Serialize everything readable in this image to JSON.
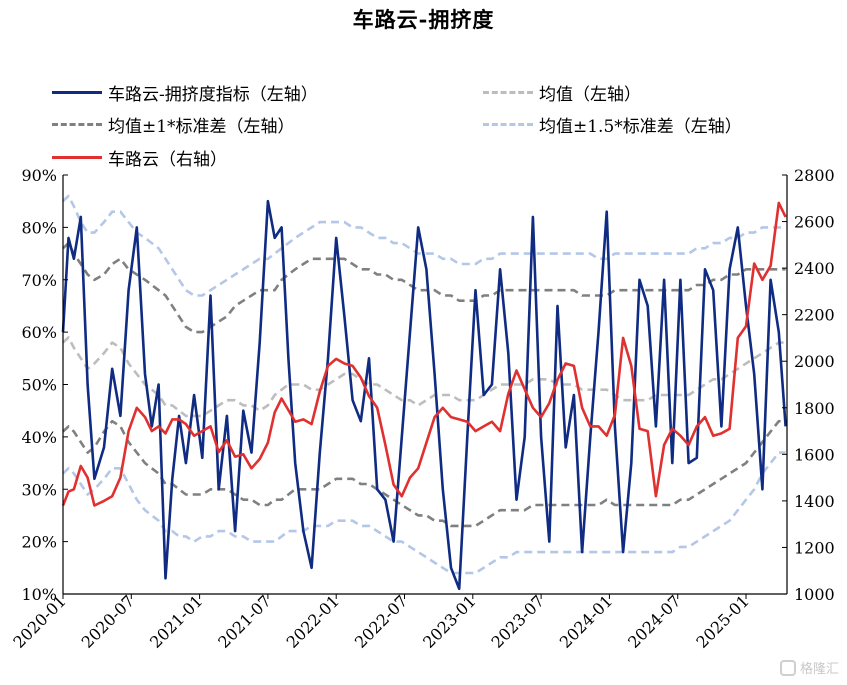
{
  "title": "车路云-拥挤度",
  "legend": [
    {
      "label": "车路云-拥挤度指标（左轴）",
      "color": "#0f2b82",
      "style": "solid"
    },
    {
      "label": "均值（左轴）",
      "color": "#bdbdbd",
      "style": "dashed"
    },
    {
      "label": "均值±1*标准差（左轴）",
      "color": "#808080",
      "style": "dashed"
    },
    {
      "label": "均值±1.5*标准差（左轴）",
      "color": "#b4c7e7",
      "style": "dashed"
    },
    {
      "label": "车路云（右轴）",
      "color": "#e03030",
      "style": "solid"
    }
  ],
  "watermark": {
    "icon": "gelonghui-logo-icon",
    "text": "格隆汇"
  },
  "chart_data": {
    "type": "line",
    "title": "车路云-拥挤度",
    "x_ticks": [
      "2020-01",
      "2020-07",
      "2021-01",
      "2021-07",
      "2022-01",
      "2022-07",
      "2023-01",
      "2023-07",
      "2024-01",
      "2024-07",
      "2025-01"
    ],
    "y_left": {
      "ylim": [
        10,
        90
      ],
      "ticks": [
        "10%",
        "20%",
        "30%",
        "40%",
        "50%",
        "60%",
        "70%",
        "80%",
        "90%"
      ]
    },
    "y_right": {
      "ylim": [
        1000,
        2800
      ],
      "ticks": [
        "1000",
        "1200",
        "1400",
        "1600",
        "1800",
        "2000",
        "2200",
        "2400",
        "2600",
        "2800"
      ]
    },
    "x": [
      2020.0,
      2020.04,
      2020.08,
      2020.13,
      2020.18,
      2020.23,
      2020.3,
      2020.36,
      2020.42,
      2020.48,
      2020.54,
      2020.6,
      2020.65,
      2020.7,
      2020.75,
      2020.8,
      2020.85,
      2020.9,
      2020.96,
      2021.02,
      2021.08,
      2021.14,
      2021.2,
      2021.26,
      2021.32,
      2021.38,
      2021.44,
      2021.5,
      2021.55,
      2021.6,
      2021.65,
      2021.7,
      2021.76,
      2021.82,
      2021.88,
      2021.94,
      2022.0,
      2022.06,
      2022.12,
      2022.18,
      2022.24,
      2022.3,
      2022.36,
      2022.42,
      2022.48,
      2022.54,
      2022.6,
      2022.66,
      2022.72,
      2022.78,
      2022.84,
      2022.9,
      2022.96,
      2023.02,
      2023.08,
      2023.14,
      2023.2,
      2023.26,
      2023.32,
      2023.38,
      2023.44,
      2023.5,
      2023.56,
      2023.62,
      2023.68,
      2023.74,
      2023.8,
      2023.86,
      2023.92,
      2023.98,
      2024.04,
      2024.1,
      2024.16,
      2024.22,
      2024.28,
      2024.34,
      2024.4,
      2024.46,
      2024.52,
      2024.58,
      2024.64,
      2024.7,
      2024.76,
      2024.82,
      2024.88,
      2024.94,
      2025.0,
      2025.06,
      2025.12,
      2025.18,
      2025.24,
      2025.29
    ],
    "series": [
      {
        "name": "车路云-拥挤度指标（左轴）",
        "axis": "left",
        "color": "#0f2b82",
        "dash": false,
        "values": [
          60,
          78,
          74,
          82,
          50,
          32,
          38,
          53,
          44,
          68,
          80,
          52,
          42,
          50,
          13,
          32,
          44,
          35,
          48,
          36,
          67,
          30,
          44,
          22,
          45,
          37,
          58,
          85,
          78,
          80,
          55,
          35,
          22,
          15,
          37,
          55,
          78,
          63,
          47,
          43,
          55,
          30,
          28,
          20,
          40,
          60,
          80,
          72,
          52,
          30,
          15,
          11,
          40,
          68,
          48,
          50,
          72,
          56,
          28,
          40,
          82,
          40,
          20,
          65,
          38,
          48,
          18,
          40,
          60,
          83,
          42,
          18,
          35,
          70,
          65,
          42,
          70,
          35,
          70,
          35,
          36,
          72,
          68,
          42,
          72,
          80,
          65,
          52,
          30,
          70,
          60,
          42
        ],
        "extra_note": ""
      },
      {
        "name": "均值（左轴）",
        "axis": "left",
        "color": "#bdbdbd",
        "dash": true,
        "values": [
          58,
          59,
          57,
          55,
          53,
          54,
          56,
          58,
          57,
          54,
          52,
          50,
          49,
          48,
          46,
          46,
          45,
          44,
          44,
          44,
          45,
          46,
          47,
          47,
          46,
          46,
          45,
          46,
          48,
          49,
          50,
          50,
          50,
          49,
          49,
          50,
          51,
          52,
          52,
          51,
          50,
          50,
          49,
          48,
          47,
          47,
          46,
          47,
          48,
          48,
          48,
          47,
          47,
          47,
          48,
          49,
          50,
          50,
          50,
          50,
          51,
          51,
          51,
          50,
          50,
          50,
          49,
          49,
          49,
          49,
          48,
          47,
          47,
          47,
          47,
          48,
          48,
          48,
          48,
          48,
          49,
          50,
          51,
          51,
          52,
          53,
          54,
          55,
          56,
          57,
          58,
          58
        ]
      },
      {
        "name": "均值+1*标准差（左轴）",
        "axis": "left",
        "color": "#808080",
        "dash": true,
        "values": [
          76,
          77,
          75,
          73,
          71,
          70,
          71,
          73,
          74,
          72,
          71,
          70,
          69,
          68,
          67,
          65,
          63,
          61,
          60,
          60,
          61,
          62,
          63,
          65,
          66,
          67,
          68,
          68,
          68,
          70,
          71,
          72,
          73,
          74,
          74,
          74,
          74,
          74,
          73,
          72,
          72,
          71,
          71,
          70,
          70,
          69,
          68,
          68,
          68,
          67,
          67,
          66,
          66,
          66,
          67,
          67,
          68,
          68,
          68,
          68,
          68,
          68,
          68,
          68,
          68,
          68,
          67,
          67,
          67,
          67,
          68,
          68,
          68,
          68,
          68,
          68,
          68,
          68,
          68,
          68,
          69,
          69,
          70,
          70,
          71,
          71,
          72,
          72,
          72,
          72,
          72,
          72
        ]
      },
      {
        "name": "均值-1*标准差（左轴）",
        "axis": "left",
        "color": "#808080",
        "dash": true,
        "values": [
          41,
          42,
          41,
          39,
          37,
          38,
          41,
          43,
          42,
          39,
          37,
          35,
          34,
          33,
          31,
          31,
          30,
          29,
          29,
          29,
          30,
          30,
          30,
          29,
          28,
          28,
          27,
          27,
          28,
          28,
          29,
          30,
          30,
          30,
          30,
          31,
          32,
          32,
          32,
          31,
          31,
          30,
          29,
          28,
          27,
          26,
          25,
          25,
          24,
          24,
          23,
          23,
          23,
          23,
          24,
          25,
          26,
          26,
          26,
          26,
          27,
          27,
          27,
          27,
          27,
          27,
          27,
          27,
          27,
          28,
          27,
          27,
          27,
          27,
          27,
          27,
          27,
          27,
          28,
          28,
          29,
          30,
          31,
          32,
          33,
          34,
          35,
          37,
          39,
          41,
          43,
          43
        ]
      },
      {
        "name": "均值+1.5*标准差（左轴）",
        "axis": "left",
        "color": "#b4c7e7",
        "dash": true,
        "values": [
          85,
          86,
          84,
          81,
          79,
          79,
          81,
          83,
          83,
          81,
          79,
          78,
          77,
          76,
          74,
          72,
          70,
          68,
          67,
          67,
          68,
          69,
          70,
          71,
          72,
          73,
          74,
          74,
          75,
          76,
          77,
          78,
          79,
          80,
          81,
          81,
          81,
          81,
          80,
          80,
          79,
          78,
          78,
          77,
          77,
          76,
          75,
          75,
          75,
          74,
          74,
          73,
          73,
          73,
          74,
          74,
          75,
          75,
          75,
          75,
          75,
          75,
          75,
          75,
          75,
          75,
          75,
          75,
          74,
          74,
          75,
          75,
          75,
          75,
          75,
          75,
          75,
          75,
          75,
          75,
          76,
          76,
          77,
          77,
          78,
          78,
          79,
          79,
          80,
          80,
          80,
          80
        ]
      },
      {
        "name": "均值-1.5*标准差（左轴）",
        "axis": "left",
        "color": "#b4c7e7",
        "dash": true,
        "values": [
          33,
          34,
          33,
          31,
          29,
          30,
          32,
          34,
          34,
          31,
          28,
          26,
          25,
          24,
          22,
          22,
          21,
          21,
          20,
          21,
          21,
          22,
          22,
          21,
          21,
          20,
          20,
          20,
          20,
          21,
          22,
          22,
          22,
          23,
          23,
          23,
          24,
          24,
          24,
          23,
          23,
          22,
          21,
          20,
          20,
          19,
          18,
          17,
          16,
          15,
          14,
          14,
          14,
          14,
          15,
          16,
          17,
          17,
          18,
          18,
          18,
          18,
          18,
          18,
          18,
          18,
          18,
          18,
          18,
          18,
          18,
          18,
          18,
          18,
          18,
          18,
          18,
          18,
          19,
          19,
          20,
          21,
          22,
          23,
          24,
          26,
          28,
          30,
          33,
          35,
          37,
          37
        ]
      },
      {
        "name": "车路云（右轴）",
        "axis": "right",
        "color": "#e03030",
        "dash": false,
        "values": [
          1380,
          1440,
          1450,
          1550,
          1500,
          1380,
          1400,
          1420,
          1500,
          1700,
          1800,
          1760,
          1700,
          1720,
          1690,
          1750,
          1750,
          1730,
          1680,
          1700,
          1720,
          1610,
          1660,
          1590,
          1600,
          1540,
          1580,
          1650,
          1780,
          1840,
          1790,
          1740,
          1750,
          1730,
          1870,
          1980,
          2010,
          1990,
          1980,
          1930,
          1850,
          1800,
          1640,
          1470,
          1420,
          1500,
          1540,
          1650,
          1760,
          1800,
          1760,
          1750,
          1740,
          1700,
          1720,
          1740,
          1700,
          1860,
          1960,
          1880,
          1800,
          1760,
          1820,
          1920,
          1990,
          1980,
          1800,
          1720,
          1720,
          1680,
          1770,
          2100,
          1980,
          1710,
          1700,
          1420,
          1640,
          1710,
          1680,
          1640,
          1720,
          1760,
          1680,
          1690,
          1710,
          2100,
          2150,
          2420,
          2350,
          2410,
          2680,
          2620
        ]
      }
    ]
  }
}
